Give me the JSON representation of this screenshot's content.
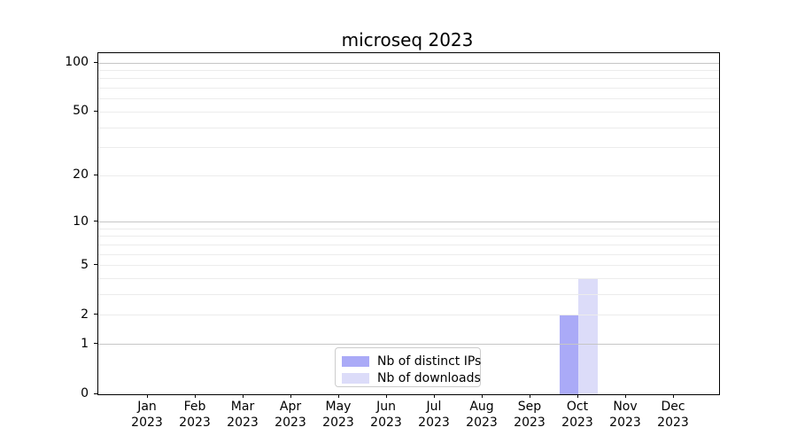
{
  "title": "microseq 2023",
  "chart_data": {
    "type": "bar",
    "title": "microseq 2023",
    "categories": [
      "Jan",
      "Feb",
      "Mar",
      "Apr",
      "May",
      "Jun",
      "Jul",
      "Aug",
      "Sep",
      "Oct",
      "Nov",
      "Dec"
    ],
    "year": "2023",
    "series": [
      {
        "name": "Nb of distinct IPs",
        "color": "#aaaaf7",
        "values": [
          0,
          0,
          0,
          0,
          0,
          0,
          0,
          0,
          0,
          2,
          0,
          0
        ]
      },
      {
        "name": "Nb of downloads",
        "color": "#dcdcf9",
        "values": [
          0,
          0,
          0,
          0,
          0,
          0,
          0,
          0,
          0,
          4,
          0,
          0
        ]
      }
    ],
    "xlabel": "",
    "ylabel": "",
    "y_scale": "log1p",
    "ylim": [
      0,
      114
    ],
    "y_ticks": [
      0,
      1,
      2,
      5,
      10,
      20,
      50,
      100
    ],
    "y_major_gridlines": [
      1,
      10,
      100
    ],
    "y_minor_gridlines": [
      2,
      3,
      4,
      5,
      6,
      7,
      8,
      9,
      20,
      30,
      40,
      50,
      60,
      70,
      80,
      90
    ],
    "grid": "horizontal",
    "legend_position": "lower center"
  },
  "legend": {
    "entries": [
      {
        "label": "Nb of distinct IPs"
      },
      {
        "label": "Nb of downloads"
      }
    ]
  },
  "colors": {
    "background": "#ffffff",
    "spine": "#000000",
    "grid_major": "#c6c6c6",
    "grid_minor": "#ececec",
    "bar_distinct_ips": "#aaaaf7",
    "bar_downloads": "#dcdcf9",
    "legend_border": "#cccccc",
    "text": "#000000"
  }
}
